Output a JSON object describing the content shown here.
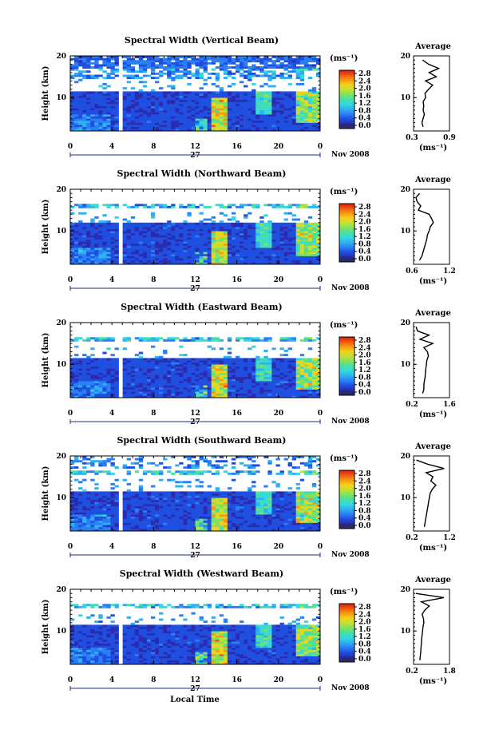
{
  "colors": {
    "colormap": [
      "#2b2bb0",
      "#1f4fe0",
      "#2a7ff5",
      "#2fb0f0",
      "#34d8e0",
      "#46e0a6",
      "#7ee25f",
      "#c4e033",
      "#f4d21a",
      "#f79a10",
      "#ef5a0e",
      "#d81a12"
    ],
    "cbar_bottom": "#2a2a70",
    "bright": "#ff1a1a"
  },
  "shared": {
    "xlabel": "Local Time",
    "ylabel": "Height (km)",
    "date_day": "27",
    "date_month": "Nov 2008",
    "cbar_unit": "(ms⁻¹)",
    "avg_title": "Average",
    "avg_unit": "(ms⁻¹)"
  },
  "chart_data": [
    {
      "type": "heatmap",
      "title": "Spectral Width (Vertical Beam)",
      "x_ticks": [
        "0",
        "4",
        "8",
        "12",
        "16",
        "20",
        "0"
      ],
      "xlim": [
        0,
        24
      ],
      "y_ticks": [
        "20",
        "10"
      ],
      "ylim": [
        2,
        20
      ],
      "colorbar": {
        "ticks": [
          "0.0",
          "0.4",
          "0.8",
          "1.2",
          "1.6",
          "2.0",
          "2.4",
          "2.8"
        ],
        "range": [
          0.0,
          2.8
        ]
      },
      "data_gap_hours": [
        4.6,
        4.9
      ],
      "average_profile": {
        "xticks": [
          "0.3",
          "0.9"
        ],
        "xlim": [
          0.3,
          0.9
        ],
        "heights": [
          3,
          4,
          5,
          6,
          7,
          8,
          9,
          10,
          11,
          12,
          13,
          14,
          15,
          16,
          17,
          18,
          19
        ],
        "values": [
          0.46,
          0.44,
          0.46,
          0.48,
          0.46,
          0.47,
          0.46,
          0.5,
          0.49,
          0.55,
          0.62,
          0.5,
          0.68,
          0.56,
          0.72,
          0.55,
          0.45
        ]
      }
    },
    {
      "type": "heatmap",
      "title": "Spectral Width (Northward Beam)",
      "x_ticks": [
        "0",
        "4",
        "8",
        "12",
        "16",
        "20",
        "0"
      ],
      "xlim": [
        0,
        24
      ],
      "y_ticks": [
        "20",
        "10"
      ],
      "ylim": [
        2,
        20
      ],
      "colorbar": {
        "ticks": [
          "0.0",
          "0.4",
          "0.8",
          "1.2",
          "1.6",
          "2.0",
          "2.4",
          "2.8"
        ],
        "range": [
          0.0,
          2.8
        ]
      },
      "data_gap_hours": [
        4.6,
        4.9
      ],
      "average_profile": {
        "xticks": [
          "0.6",
          "1.2"
        ],
        "xlim": [
          0.6,
          1.2
        ],
        "heights": [
          3,
          4,
          5,
          6,
          7,
          8,
          9,
          10,
          11,
          12,
          13,
          14,
          15,
          16,
          17,
          18,
          19
        ],
        "values": [
          0.7,
          0.74,
          0.76,
          0.78,
          0.8,
          0.82,
          0.83,
          0.86,
          0.88,
          0.93,
          0.9,
          0.86,
          0.68,
          0.72,
          0.66,
          0.64,
          0.7
        ]
      }
    },
    {
      "type": "heatmap",
      "title": "Spectral Width (Eastward Beam)",
      "x_ticks": [
        "0",
        "4",
        "8",
        "12",
        "16",
        "20",
        "0"
      ],
      "xlim": [
        0,
        24
      ],
      "y_ticks": [
        "20",
        "10"
      ],
      "ylim": [
        2,
        20
      ],
      "colorbar": {
        "ticks": [
          "0.0",
          "0.4",
          "0.8",
          "1.2",
          "1.6",
          "2.0",
          "2.4",
          "2.8"
        ],
        "range": [
          0.0,
          2.8
        ]
      },
      "data_gap_hours": [
        4.6,
        4.9
      ],
      "average_profile": {
        "xticks": [
          "0.2",
          "1.6"
        ],
        "xlim": [
          0.2,
          1.6
        ],
        "heights": [
          3,
          4,
          5,
          6,
          7,
          8,
          9,
          10,
          11,
          12,
          13,
          14,
          15,
          16,
          17,
          18,
          19
        ],
        "values": [
          0.55,
          0.6,
          0.6,
          0.62,
          0.65,
          0.66,
          0.68,
          0.7,
          0.72,
          0.78,
          0.74,
          0.6,
          0.95,
          0.45,
          0.8,
          0.35,
          0.3
        ]
      }
    },
    {
      "type": "heatmap",
      "title": "Spectral Width (Southward Beam)",
      "x_ticks": [
        "0",
        "4",
        "8",
        "12",
        "16",
        "20",
        "0"
      ],
      "xlim": [
        0,
        24
      ],
      "y_ticks": [
        "20",
        "10"
      ],
      "ylim": [
        2,
        20
      ],
      "colorbar": {
        "ticks": [
          "0.0",
          "0.4",
          "0.8",
          "1.2",
          "1.6",
          "2.0",
          "2.4",
          "2.8"
        ],
        "range": [
          0.0,
          2.8
        ]
      },
      "data_gap_hours": [
        4.6,
        4.9
      ],
      "average_profile": {
        "xticks": [
          "0.2",
          "1.2"
        ],
        "xlim": [
          0.2,
          1.2
        ],
        "heights": [
          3,
          4,
          5,
          6,
          7,
          8,
          9,
          10,
          11,
          12,
          13,
          14,
          15,
          16,
          17,
          18,
          19
        ],
        "values": [
          0.5,
          0.52,
          0.54,
          0.56,
          0.58,
          0.6,
          0.62,
          0.64,
          0.66,
          0.72,
          0.82,
          0.68,
          0.74,
          0.55,
          1.05,
          0.6,
          0.28
        ]
      }
    },
    {
      "type": "heatmap",
      "title": "Spectral Width (Westward Beam)",
      "x_ticks": [
        "0",
        "4",
        "8",
        "12",
        "16",
        "20",
        "0"
      ],
      "xlim": [
        0,
        24
      ],
      "y_ticks": [
        "20",
        "10"
      ],
      "ylim": [
        2,
        20
      ],
      "colorbar": {
        "ticks": [
          "0.0",
          "0.4",
          "0.8",
          "1.2",
          "1.6",
          "2.0",
          "2.4",
          "2.8"
        ],
        "range": [
          0.0,
          2.8
        ]
      },
      "data_gap_hours": [
        4.6,
        4.9
      ],
      "average_profile": {
        "xticks": [
          "0.2",
          "1.8"
        ],
        "xlim": [
          0.2,
          1.8
        ],
        "heights": [
          3,
          4,
          5,
          6,
          7,
          8,
          9,
          10,
          11,
          12,
          13,
          14,
          15,
          16,
          17,
          18,
          19
        ],
        "values": [
          0.48,
          0.5,
          0.52,
          0.53,
          0.55,
          0.56,
          0.58,
          0.6,
          0.62,
          0.66,
          0.64,
          0.58,
          0.7,
          0.9,
          0.55,
          1.55,
          0.3
        ]
      }
    }
  ]
}
